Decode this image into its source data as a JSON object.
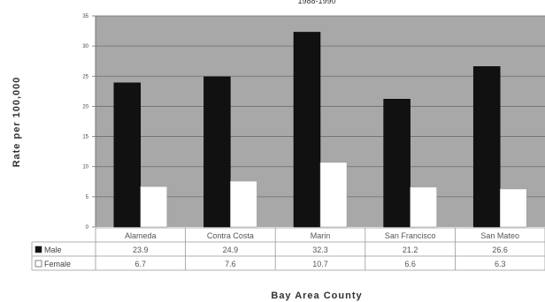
{
  "chart_data": {
    "type": "bar",
    "title": "1988-1990",
    "xlabel": "Bay Area County",
    "ylabel": "Rate per 100,000",
    "categories": [
      "Alameda",
      "Contra Costa",
      "Marin",
      "San Francisco",
      "San Mateo"
    ],
    "series": [
      {
        "name": "Male",
        "values": [
          23.9,
          24.9,
          32.3,
          21.2,
          26.6
        ],
        "display": [
          "23.9",
          "24.9",
          "32.3",
          "21.2",
          "26.6"
        ],
        "color": "#111111"
      },
      {
        "name": "Female",
        "values": [
          6.7,
          7.6,
          10.7,
          6.6,
          6.3
        ],
        "display": [
          "6.7",
          "7.6",
          "10.7",
          "6.6",
          "6.3"
        ],
        "color": "#ffffff"
      }
    ],
    "ylim": [
      0,
      35
    ],
    "yticks": [
      "0",
      "5",
      "10",
      "15",
      "20",
      "25",
      "30",
      "35"
    ],
    "yticks_values": [
      0,
      5,
      10,
      15,
      20,
      25,
      30,
      35
    ],
    "grid": true,
    "legend": "data-table-left",
    "plot_background": "#a8a8a8"
  }
}
